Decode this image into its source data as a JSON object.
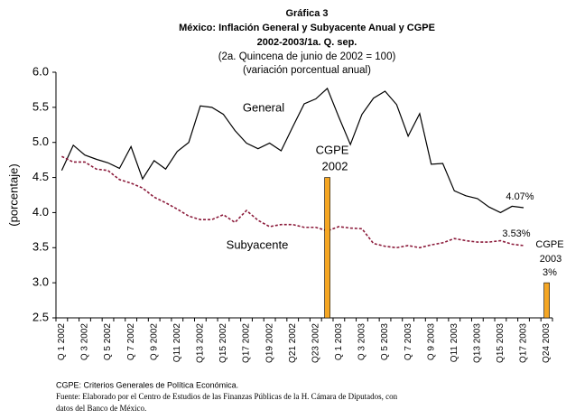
{
  "chart_data": {
    "type": "line",
    "title": "Gráfica 3",
    "subtitles": [
      "México: Inflación General y Subyacente Anual y CGPE",
      "2002-2003/1a. Q. sep."
    ],
    "notes_top": [
      "(2a. Quincena de junio de 2002 = 100)",
      "(variación porcentual anual)"
    ],
    "y_label": "(porcentaje)",
    "categories": [
      "Q 1 2002",
      null,
      "Q 3 2002",
      null,
      "Q 5 2002",
      null,
      "Q 7 2002",
      null,
      "Q 9 2002",
      null,
      "Q11 2002",
      null,
      "Q13 2002",
      null,
      "Q15 2002",
      null,
      "Q17 2002",
      null,
      "Q19 2002",
      null,
      "Q21 2002",
      null,
      "Q23 2002",
      null,
      "Q 1 2003",
      null,
      "Q 3 2003",
      null,
      "Q 5 2003",
      null,
      "Q 7 2003",
      null,
      "Q 9 2003",
      null,
      "Q11 2003",
      null,
      "Q13 2003",
      null,
      "Q15 2003",
      null,
      "Q17 2003",
      null,
      "Q24 2003"
    ],
    "series": [
      {
        "name": "General",
        "type": "line",
        "color": "#000000",
        "dashed": false,
        "values": [
          4.6,
          4.96,
          4.82,
          4.76,
          4.71,
          4.63,
          4.94,
          4.48,
          4.74,
          4.62,
          4.87,
          5.0,
          5.52,
          5.5,
          5.4,
          5.17,
          4.99,
          4.91,
          4.99,
          4.88,
          5.22,
          5.55,
          5.62,
          5.77,
          5.36,
          4.97,
          5.4,
          5.63,
          5.73,
          5.54,
          5.09,
          5.41,
          4.69,
          4.7,
          4.31,
          4.24,
          4.2,
          4.08,
          4.0,
          4.09,
          4.07,
          null,
          null
        ]
      },
      {
        "name": "Subyacente",
        "type": "line",
        "color": "#8b1a3a",
        "dashed": true,
        "values": [
          4.8,
          4.72,
          4.72,
          4.62,
          4.6,
          4.47,
          4.42,
          4.35,
          4.22,
          4.14,
          4.05,
          3.95,
          3.9,
          3.9,
          3.97,
          3.86,
          4.03,
          3.89,
          3.8,
          3.83,
          3.83,
          3.79,
          3.79,
          3.74,
          3.8,
          3.78,
          3.77,
          3.56,
          3.52,
          3.5,
          3.53,
          3.5,
          3.54,
          3.57,
          3.63,
          3.6,
          3.58,
          3.58,
          3.6,
          3.55,
          3.53,
          null,
          null
        ]
      },
      {
        "name": "CGPE",
        "type": "bar",
        "color": "#f5a623",
        "values": [
          null,
          null,
          null,
          null,
          null,
          null,
          null,
          null,
          null,
          null,
          null,
          null,
          null,
          null,
          null,
          null,
          null,
          null,
          null,
          null,
          null,
          null,
          null,
          4.5,
          null,
          null,
          null,
          null,
          null,
          null,
          null,
          null,
          null,
          null,
          null,
          null,
          null,
          null,
          null,
          null,
          null,
          null,
          3.0
        ]
      }
    ],
    "annotations": [
      "General",
      "Subyacente",
      "CGPE",
      "2002",
      "4.07%",
      "3.53%",
      "CGPE",
      "2003",
      "3%"
    ],
    "ylim": [
      2.5,
      6.0
    ],
    "yticks": [
      2.5,
      {
        "value": 3,
        "label": "3.0"
      },
      3.5,
      {
        "value": 4,
        "label": "4.0"
      },
      4.5,
      {
        "value": 5,
        "label": "5.0"
      },
      5.5,
      {
        "value": 6,
        "label": "6.0"
      }
    ],
    "grid": false,
    "notes": [
      "CGPE: Criterios Generales de Política Económica.",
      "Fuente: Elaborado por el Centro de Estudios de las Finanzas Públicas de la H. Cámara de Diputados, con",
      "datos del Banco de México."
    ]
  }
}
